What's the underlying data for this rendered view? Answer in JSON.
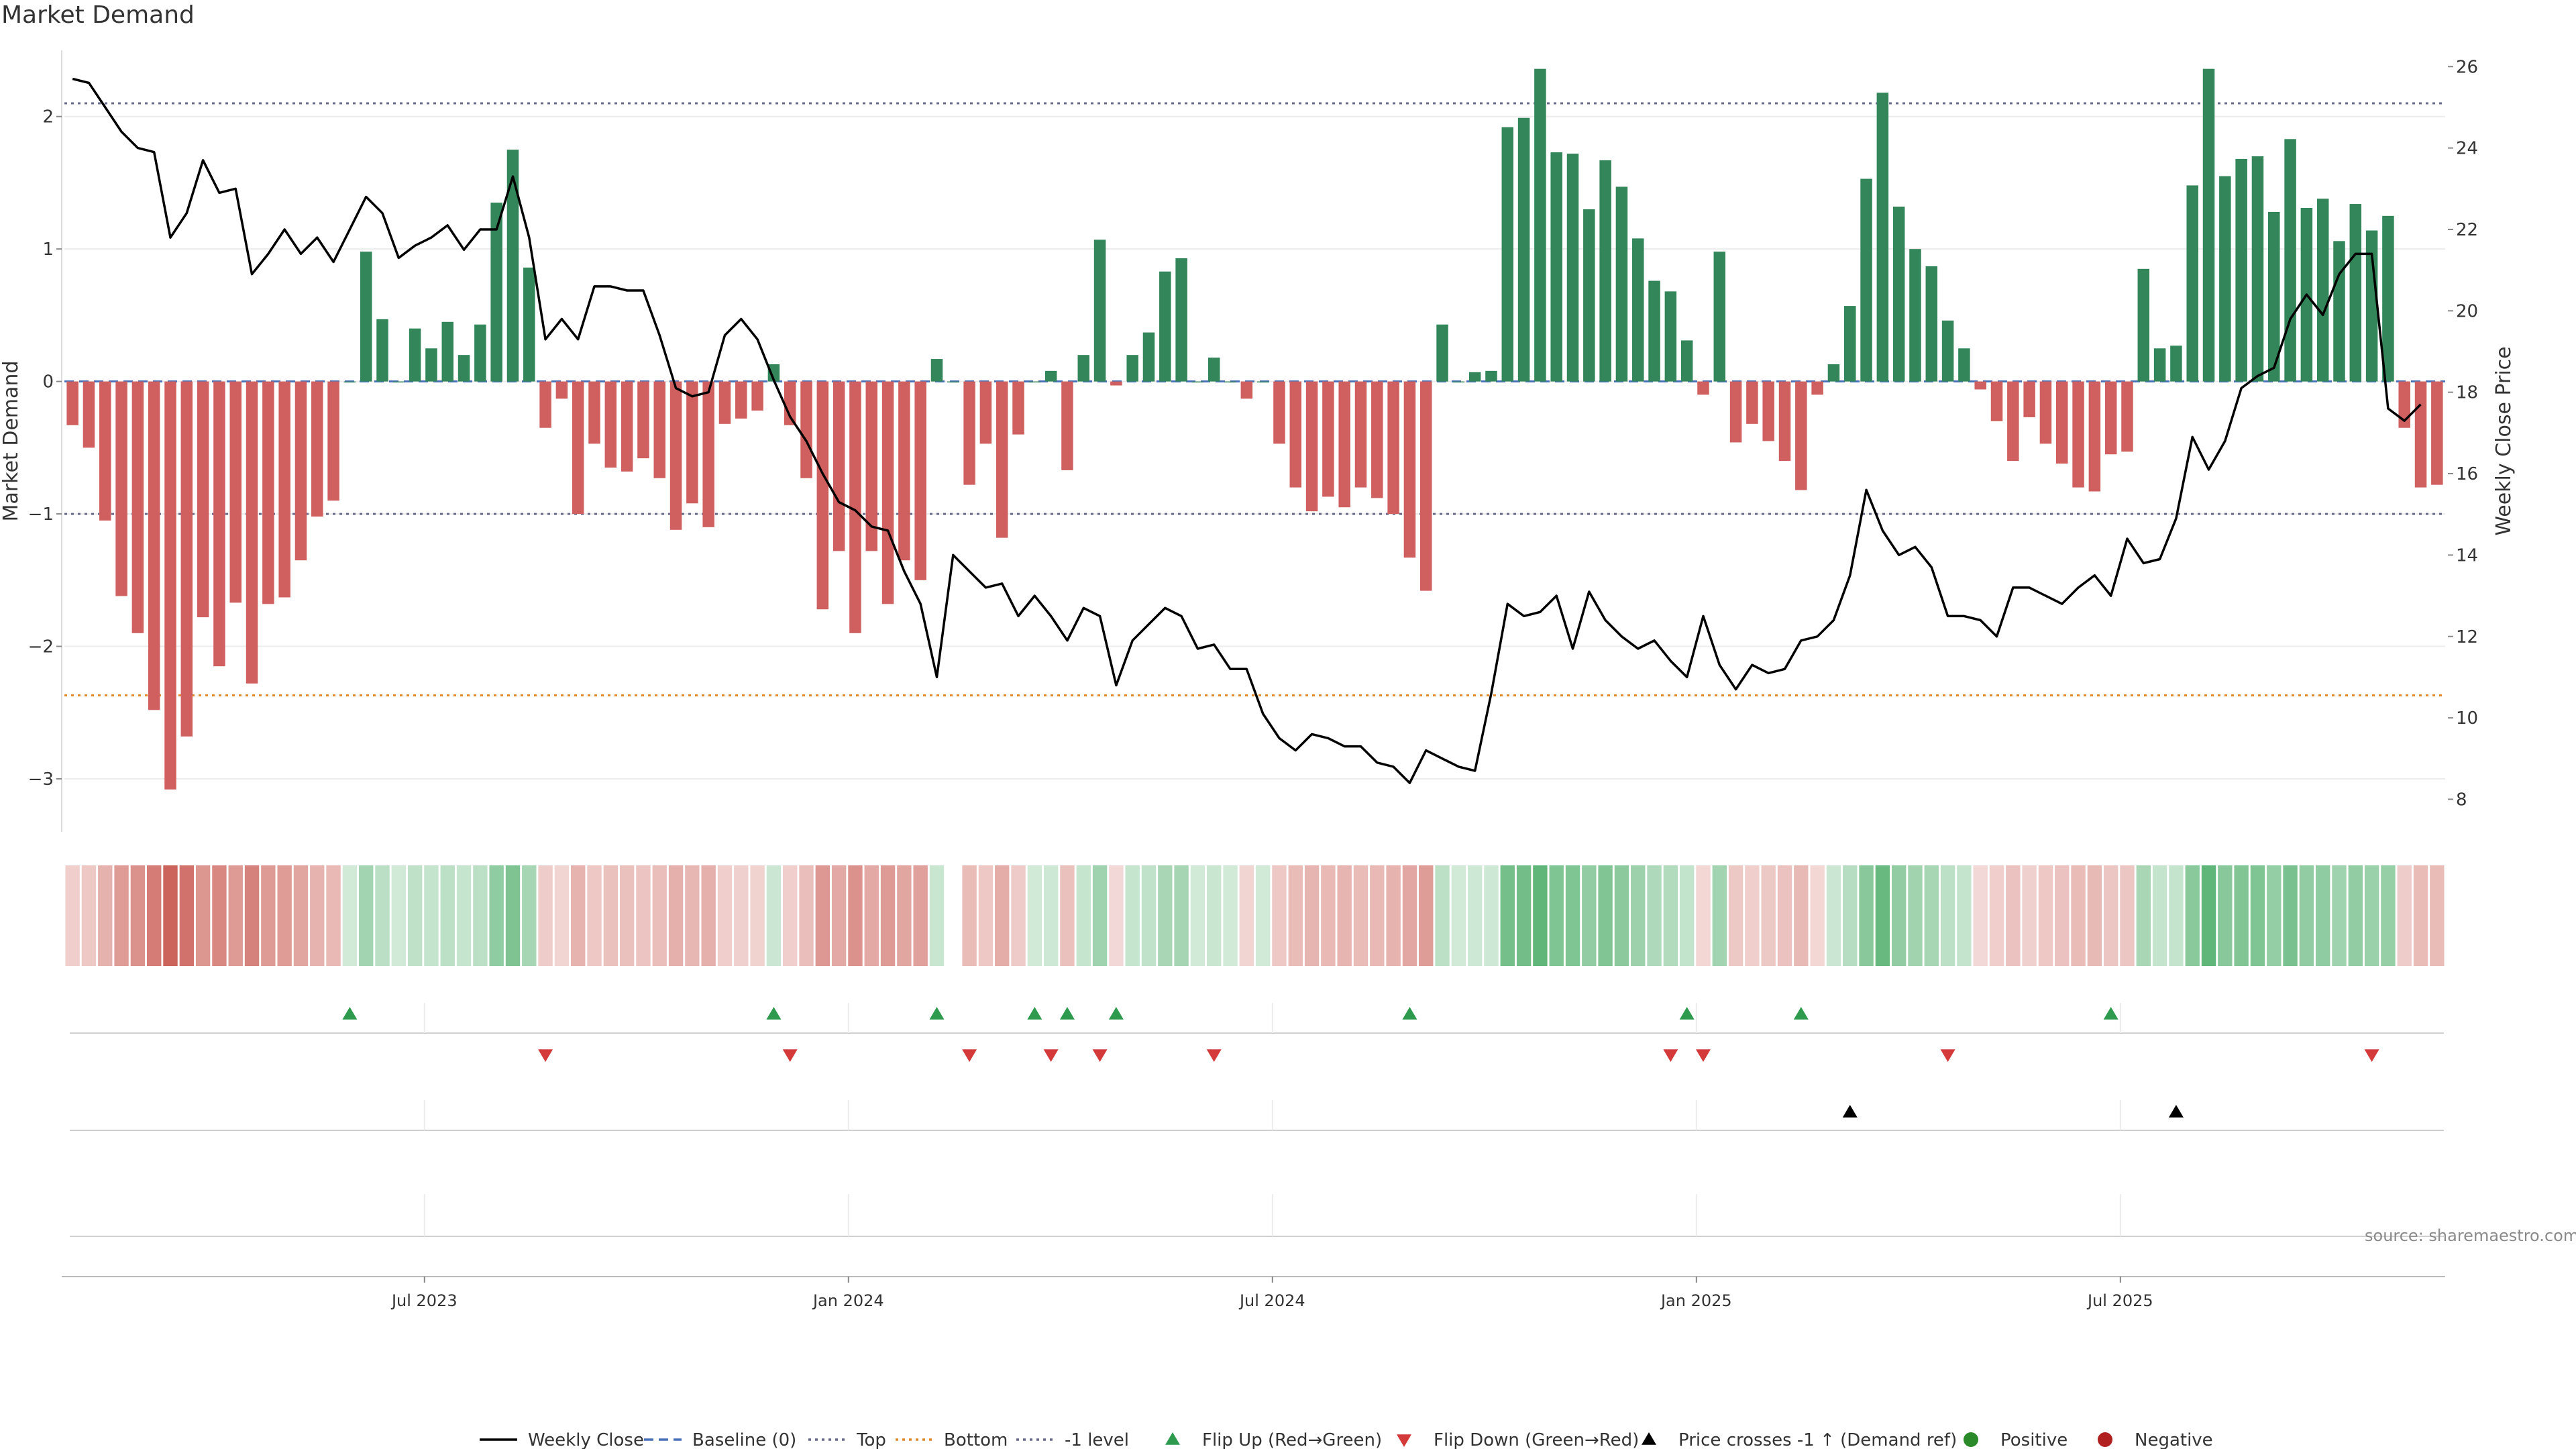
{
  "title": "Market Demand",
  "source": "source: sharemaestro.com",
  "chart_data": {
    "type": "bar",
    "title": "Market Demand",
    "xlabel": "",
    "ylabel": "Market Demand",
    "y2label": "Weekly Close Price",
    "ylim": [
      -3.4,
      2.5
    ],
    "y_ticks": [
      "2",
      "1",
      "0",
      "−1",
      "−2",
      "−3"
    ],
    "y_tick_values": [
      2,
      1,
      0,
      -1,
      -2,
      -3
    ],
    "y2lim": [
      7.2,
      26.4
    ],
    "y2_ticks": [
      "26",
      "24",
      "22",
      "20",
      "18",
      "16",
      "14",
      "12",
      "10",
      "8"
    ],
    "y2_tick_values": [
      26,
      24,
      22,
      20,
      18,
      16,
      14,
      12,
      10,
      8
    ],
    "x_ticks": [
      "Jul 2023",
      "Jan 2024",
      "Jul 2024",
      "Jan 2025",
      "Jul 2025"
    ],
    "x_tick_week_index": [
      22,
      48,
      74,
      100,
      126
    ],
    "reference_lines": {
      "top": 2.1,
      "bottom": -2.37,
      "minus_one": -1.0,
      "baseline": 0
    },
    "series": [
      {
        "name": "Market Demand (weekly)",
        "values": [
          -0.33,
          -0.5,
          -1.05,
          -1.62,
          -1.9,
          -2.48,
          -3.08,
          -2.68,
          -1.78,
          -2.15,
          -1.67,
          -2.28,
          -1.68,
          -1.63,
          -1.35,
          -1.02,
          -0.9,
          0.0,
          0.98,
          0.47,
          0.0,
          0.4,
          0.25,
          0.45,
          0.2,
          0.43,
          1.35,
          1.75,
          0.86,
          -0.35,
          -0.13,
          -1.0,
          -0.47,
          -0.65,
          -0.68,
          -0.58,
          -0.73,
          -1.12,
          -0.92,
          -1.1,
          -0.32,
          -0.28,
          -0.22,
          0.13,
          -0.33,
          -0.73,
          -1.72,
          -1.28,
          -1.9,
          -1.28,
          -1.68,
          -1.35,
          -1.5,
          0.17,
          0.0,
          -0.78,
          -0.47,
          -1.18,
          -0.4,
          0.0,
          0.08,
          -0.67,
          0.2,
          1.07,
          -0.03,
          0.2,
          0.37,
          0.83,
          0.93,
          0.0,
          0.18,
          0.0,
          -0.13,
          0.0,
          -0.47,
          -0.8,
          -0.98,
          -0.87,
          -0.95,
          -0.8,
          -0.88,
          -1.0,
          -1.33,
          -1.58,
          0.43,
          0.0,
          0.07,
          0.08,
          1.92,
          1.99,
          2.36,
          1.73,
          1.72,
          1.3,
          1.67,
          1.47,
          1.08,
          0.76,
          0.68,
          0.31,
          -0.1,
          0.98,
          -0.46,
          -0.32,
          -0.45,
          -0.6,
          -0.82,
          -0.1,
          0.13,
          0.57,
          1.53,
          2.18,
          1.32,
          1.0,
          0.87,
          0.46,
          0.25,
          -0.06,
          -0.3,
          -0.6,
          -0.27,
          -0.47,
          -0.62,
          -0.8,
          -0.83,
          -0.55,
          -0.53,
          0.85,
          0.25,
          0.27,
          1.48,
          2.36,
          1.55,
          1.68,
          1.7,
          1.28,
          1.83,
          1.31,
          1.38,
          1.06,
          1.34,
          1.14,
          1.25,
          -0.35,
          -0.8,
          -0.78
        ]
      },
      {
        "name": "Weekly Close",
        "values": [
          25.7,
          25.6,
          25.0,
          24.4,
          24.0,
          23.9,
          21.8,
          22.4,
          23.7,
          22.9,
          23.0,
          20.9,
          21.4,
          22.0,
          21.4,
          21.8,
          21.2,
          22.0,
          22.8,
          22.4,
          21.3,
          21.6,
          21.8,
          22.1,
          21.5,
          22.0,
          22.0,
          23.3,
          21.8,
          19.3,
          19.8,
          19.3,
          20.6,
          20.6,
          20.5,
          20.5,
          19.4,
          18.1,
          17.9,
          18.0,
          19.4,
          19.8,
          19.3,
          18.3,
          17.4,
          16.8,
          16.0,
          15.3,
          15.1,
          14.7,
          14.6,
          13.6,
          12.8,
          11.0,
          14.0,
          13.6,
          13.2,
          13.3,
          12.5,
          13.0,
          12.5,
          11.9,
          12.7,
          12.5,
          10.8,
          11.9,
          12.3,
          12.7,
          12.5,
          11.7,
          11.8,
          11.2,
          11.2,
          10.1,
          9.5,
          9.2,
          9.6,
          9.5,
          9.3,
          9.3,
          8.9,
          8.8,
          8.4,
          9.2,
          9.0,
          8.8,
          8.7,
          10.6,
          12.8,
          12.5,
          12.6,
          13.0,
          11.7,
          13.1,
          12.4,
          12.0,
          11.7,
          11.9,
          11.4,
          11.0,
          12.5,
          11.3,
          10.7,
          11.3,
          11.1,
          11.2,
          11.9,
          12.0,
          12.4,
          13.5,
          15.6,
          14.6,
          14.0,
          14.2,
          13.7,
          12.5,
          12.5,
          12.4,
          12.0,
          13.2,
          13.2,
          13.0,
          12.8,
          13.2,
          13.5,
          13.0,
          14.4,
          13.8,
          13.9,
          14.9,
          16.9,
          16.1,
          16.8,
          18.1,
          18.4,
          18.6,
          19.8,
          20.4,
          19.9,
          20.9,
          21.4,
          21.4,
          17.6,
          17.3,
          17.7
        ]
      }
    ],
    "flip_up_week_index": [
      17,
      43,
      53,
      59,
      61,
      64,
      82,
      99,
      106,
      125
    ],
    "flip_down_week_index": [
      29,
      44,
      55,
      60,
      63,
      70,
      98,
      100,
      115,
      141
    ],
    "price_cross_week_index": [
      109,
      129
    ],
    "heatmap_gap_week_index": [
      54
    ],
    "legend": [
      {
        "label": "Weekly Close",
        "symbol": "line",
        "color": "#000000"
      },
      {
        "label": "Baseline (0)",
        "symbol": "dash",
        "color": "#4a72b8"
      },
      {
        "label": "Top",
        "symbol": "dot",
        "color": "#6a6a8a"
      },
      {
        "label": "Bottom",
        "symbol": "dot",
        "color": "#e08a2c"
      },
      {
        "label": "-1 level",
        "symbol": "dot",
        "color": "#6a6a8a"
      },
      {
        "label": "Flip Up (Red→Green)",
        "symbol": "tri-up",
        "color": "#2e9a4e"
      },
      {
        "label": "Flip Down (Green→Red)",
        "symbol": "tri-down",
        "color": "#d43a3a"
      },
      {
        "label": "Price crosses -1 ↑ (Demand ref)",
        "symbol": "tri-up",
        "color": "#000000"
      },
      {
        "label": "Positive",
        "symbol": "dot-fill",
        "color": "#2a8a2a"
      },
      {
        "label": "Negative",
        "symbol": "dot-fill",
        "color": "#b02020"
      }
    ],
    "colors": {
      "positive": "#33865a",
      "negative": "#d06060",
      "price": "#000000",
      "heat_pos": "#2e9e4e",
      "heat_neg": "#c8574e"
    }
  }
}
